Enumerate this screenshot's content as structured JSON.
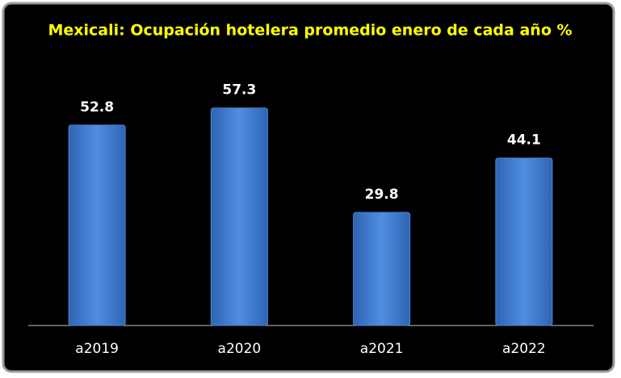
{
  "chart_data": {
    "type": "bar",
    "title": "Mexicali: Ocupación hotelera promedio enero de cada año %",
    "categories": [
      "a2019",
      "a2020",
      "a2021",
      "a2022"
    ],
    "values": [
      52.8,
      57.3,
      29.8,
      44.1
    ],
    "color": "#4a86d8"
  }
}
